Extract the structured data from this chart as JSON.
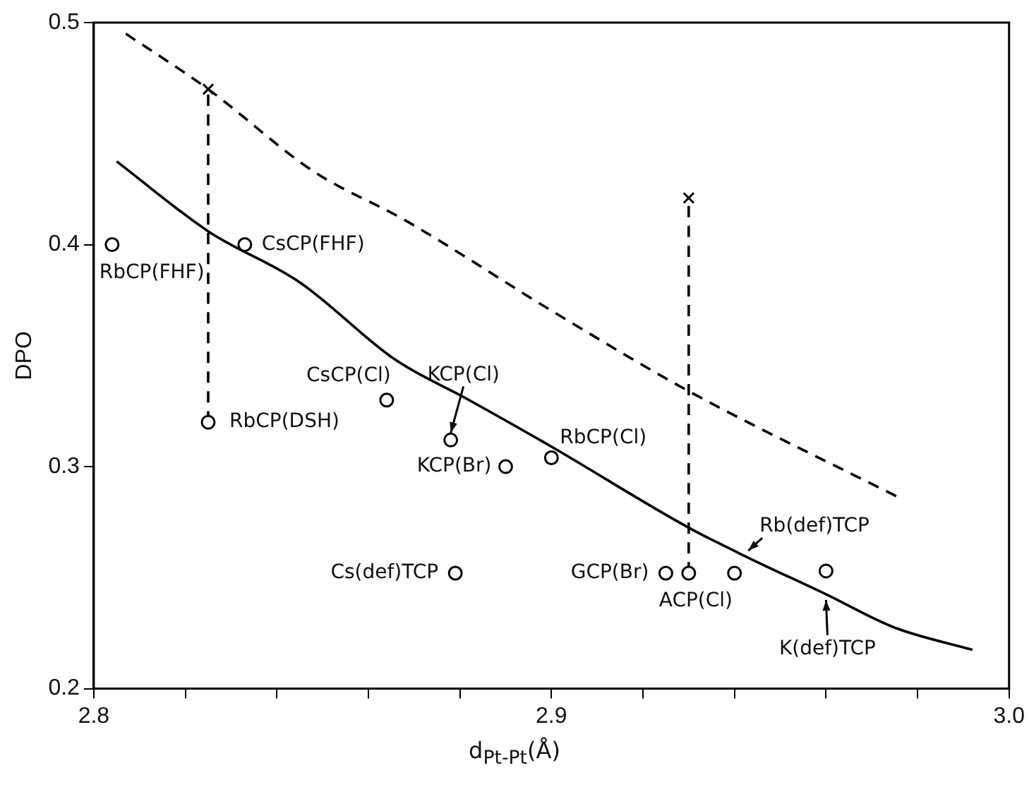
{
  "chart_data": {
    "type": "scatter",
    "xlabel": "d$_{Pt-Pt}$(Å)",
    "ylabel": "DPO",
    "xlim": [
      2.8,
      3.0
    ],
    "ylim": [
      0.2,
      0.5
    ],
    "xticks": [
      2.8,
      {
        "value": 2.82,
        "label": null
      },
      {
        "value": 2.84,
        "label": null
      },
      {
        "value": 2.86,
        "label": null
      },
      {
        "value": 2.88,
        "label": null
      },
      2.9,
      {
        "value": 2.92,
        "label": null
      },
      {
        "value": 2.94,
        "label": null
      },
      {
        "value": 2.96,
        "label": null
      },
      {
        "value": 2.98,
        "label": null
      },
      {
        "value": 3.0,
        "label": "3.0"
      }
    ],
    "yticks": [
      0.2,
      0.3,
      0.4,
      0.5
    ],
    "grid": false,
    "legend": false,
    "series": [
      {
        "marker": "circle",
        "color": "#000000",
        "x": [
          2.804,
          2.833,
          2.825,
          2.864,
          2.878,
          2.89,
          2.9,
          2.879,
          2.925,
          2.93,
          2.94,
          2.96
        ],
        "values": [
          0.4,
          0.4,
          0.32,
          0.33,
          0.312,
          0.3,
          0.304,
          0.252,
          0.252,
          0.252,
          0.252,
          0.253
        ]
      },
      {
        "marker": "cross",
        "color": "#000000",
        "x": [
          2.825,
          2.93
        ],
        "values": [
          0.47,
          0.421
        ]
      },
      {
        "type": "line",
        "marker": "none",
        "line_style": "solid",
        "color": "#000000",
        "x": [
          2.805,
          2.825,
          2.845,
          2.866,
          2.882,
          2.9,
          2.93,
          2.943,
          2.96,
          2.975,
          2.992
        ],
        "values": [
          0.4375,
          0.406,
          0.383,
          0.348,
          0.33,
          0.309,
          0.2725,
          0.259,
          0.2425,
          0.2275,
          0.2175
        ]
      },
      {
        "type": "line",
        "marker": "none",
        "line_style": "dashed",
        "color": "#000000",
        "x": [
          2.807,
          2.825,
          2.848,
          2.868,
          2.901,
          2.93,
          2.976
        ],
        "values": [
          0.495,
          0.47,
          0.433,
          0.411,
          0.369,
          0.334,
          0.286
        ]
      },
      {
        "type": "line",
        "marker": "none",
        "line_style": "dashed",
        "color": "#000000",
        "x": [
          2.825,
          2.825
        ],
        "values": [
          0.32,
          0.47
        ]
      },
      {
        "type": "line",
        "marker": "none",
        "line_style": "dashed",
        "color": "#000000",
        "x": [
          2.93,
          2.93
        ],
        "values": [
          0.252,
          0.421
        ]
      }
    ],
    "annotations": [
      {
        "text": "RbCP(FHF)",
        "x": 2.804,
        "y": 0.4
      },
      {
        "text": "CsCP(FHF)",
        "x": 2.833,
        "y": 0.4
      },
      {
        "text": "RbCP(DSH)",
        "x": 2.825,
        "y": 0.32
      },
      {
        "text": "CsCP(Cl)",
        "x": 2.864,
        "y": 0.33
      },
      {
        "text": "KCP(Cl)",
        "x": 2.878,
        "y": 0.312
      },
      {
        "text": "KCP(Br)",
        "x": 2.89,
        "y": 0.3
      },
      {
        "text": "RbCP(Cl)",
        "x": 2.9,
        "y": 0.304
      },
      {
        "text": "Cs(def)TCP",
        "x": 2.879,
        "y": 0.252
      },
      {
        "text": "GCP(Br)",
        "x": 2.925,
        "y": 0.252
      },
      {
        "text": "ACP(Cl)",
        "x": 2.93,
        "y": 0.252
      },
      {
        "text": "Rb(def)TCP",
        "x": 2.943,
        "y": 0.259
      },
      {
        "text": "K(def)TCP",
        "x": 2.96,
        "y": 0.2425
      }
    ]
  }
}
